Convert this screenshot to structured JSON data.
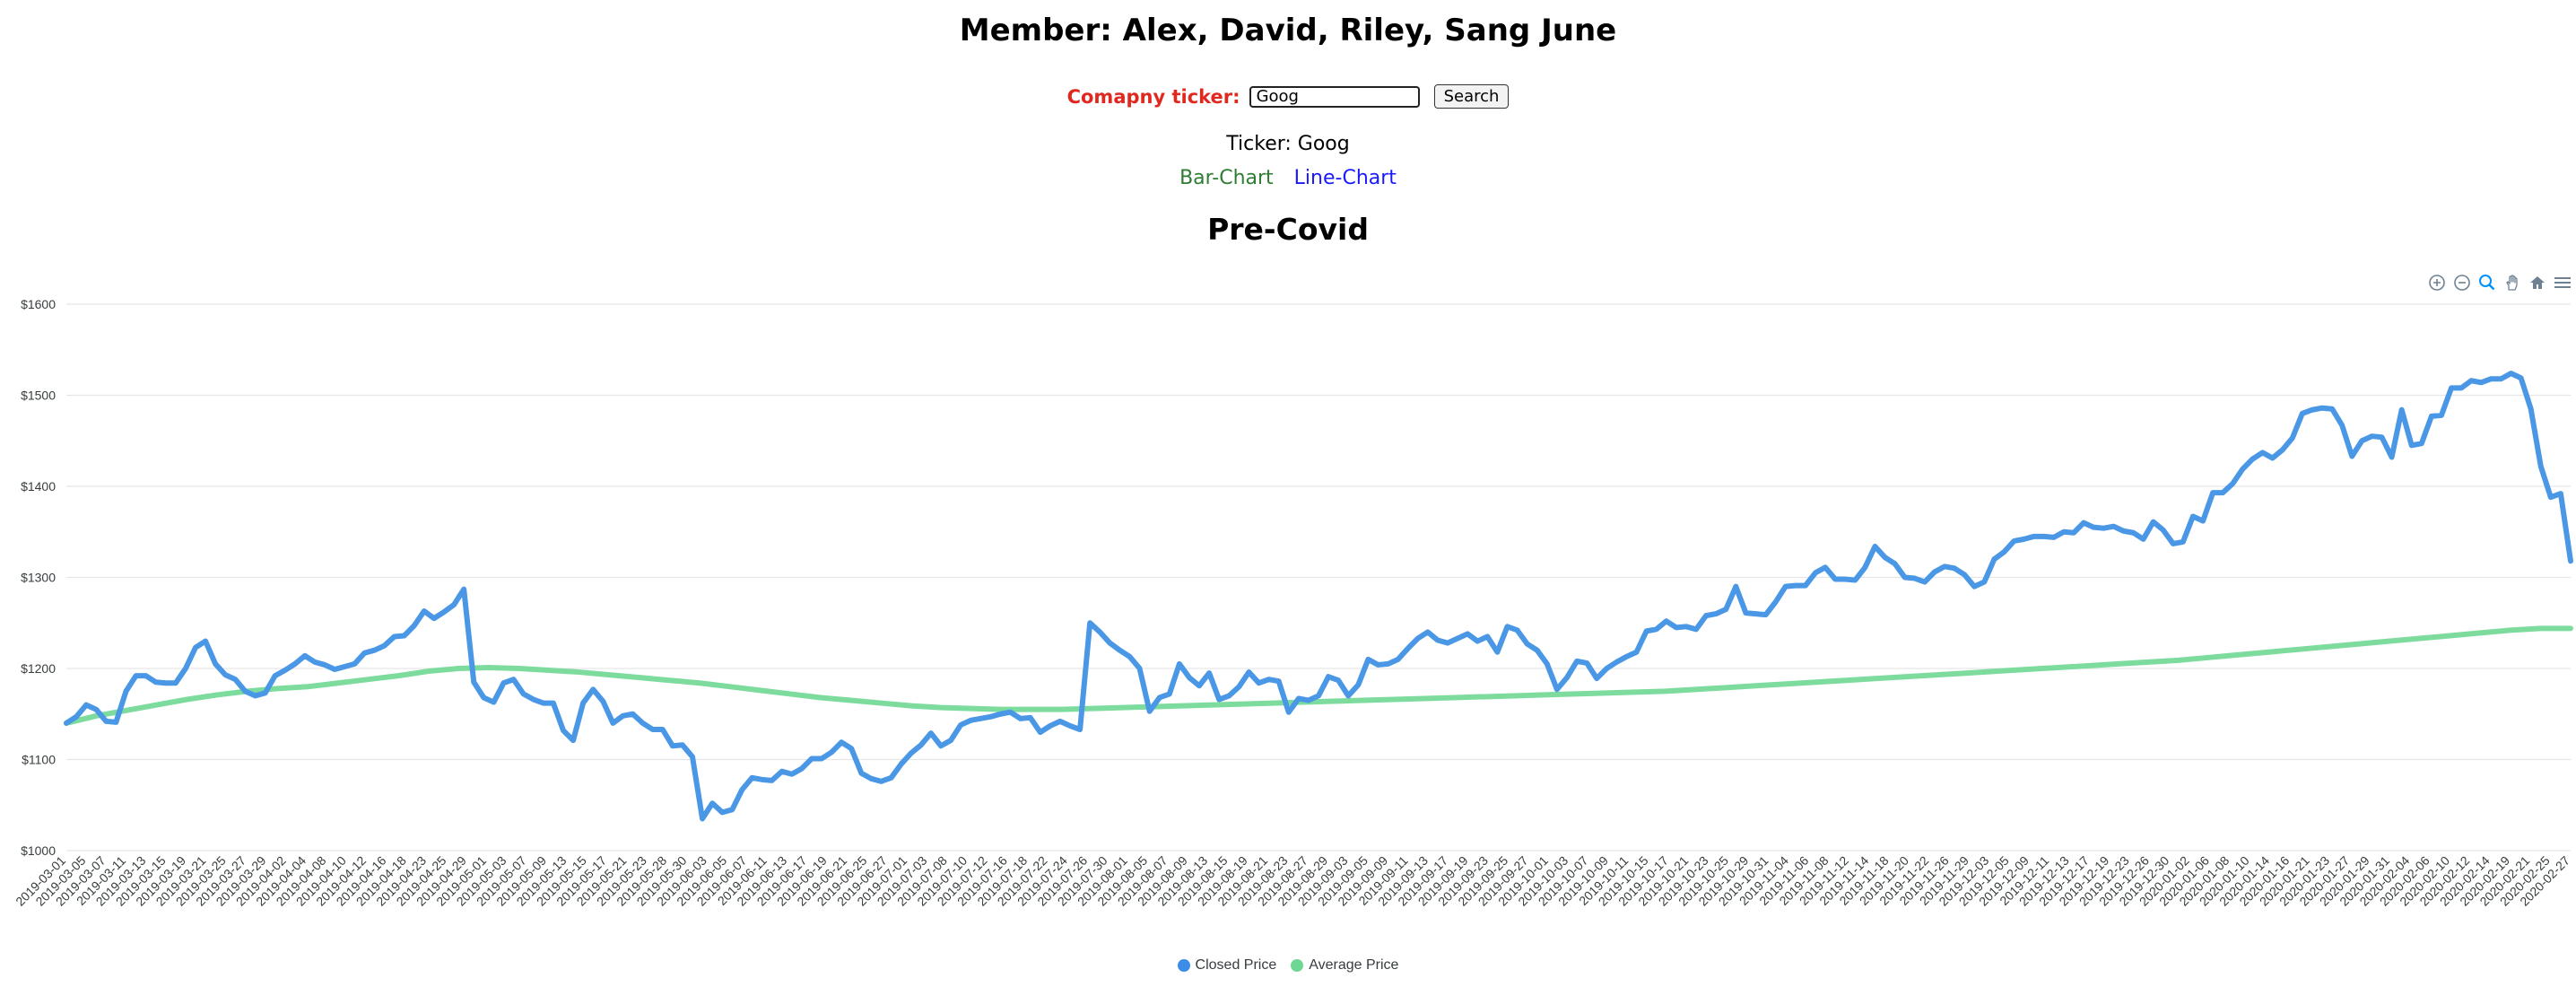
{
  "header": {
    "members": "Member: Alex, David, Riley, Sang June",
    "ticker_label": "Comapny ticker:",
    "ticker_value": "Goog",
    "search_label": "Search",
    "ticker_line": "Ticker: Goog",
    "bar_chart_link": "Bar-Chart",
    "line_chart_link": "Line-Chart"
  },
  "colors": {
    "closed": "#4a97e6",
    "average": "#7ddc9d",
    "ticker_label": "#e0281f",
    "bar_link": "#2e7d32",
    "line_link": "#1a1aff"
  },
  "toolbar_icons": [
    "zoom-in-icon",
    "zoom-out-icon",
    "zoom-select-icon",
    "pan-hand-icon",
    "home-reset-icon",
    "menu-icon"
  ],
  "chart_data": {
    "type": "line",
    "title": "Pre-Covid",
    "ylim": [
      1000,
      1600
    ],
    "yticks": [
      1000,
      1100,
      1200,
      1300,
      1400,
      1500,
      1600
    ],
    "ytick_labels": [
      "$1000",
      "$1100",
      "$1200",
      "$1300",
      "$1400",
      "$1500",
      "$1600"
    ],
    "grid": true,
    "legend": "bottom-center",
    "xtick_labels": [
      "2019-03-01",
      "2019-03-05",
      "2019-03-07",
      "2019-03-11",
      "2019-03-13",
      "2019-03-15",
      "2019-03-19",
      "2019-03-21",
      "2019-03-25",
      "2019-03-27",
      "2019-03-29",
      "2019-04-02",
      "2019-04-04",
      "2019-04-08",
      "2019-04-10",
      "2019-04-12",
      "2019-04-16",
      "2019-04-18",
      "2019-04-23",
      "2019-04-25",
      "2019-04-29",
      "2019-05-01",
      "2019-05-03",
      "2019-05-07",
      "2019-05-09",
      "2019-05-13",
      "2019-05-15",
      "2019-05-17",
      "2019-05-21",
      "2019-05-23",
      "2019-05-28",
      "2019-05-30",
      "2019-06-03",
      "2019-06-05",
      "2019-06-07",
      "2019-06-11",
      "2019-06-13",
      "2019-06-17",
      "2019-06-19",
      "2019-06-21",
      "2019-06-25",
      "2019-06-27",
      "2019-07-01",
      "2019-07-03",
      "2019-07-08",
      "2019-07-10",
      "2019-07-12",
      "2019-07-16",
      "2019-07-18",
      "2019-07-22",
      "2019-07-24",
      "2019-07-26",
      "2019-07-30",
      "2019-08-01",
      "2019-08-05",
      "2019-08-07",
      "2019-08-09",
      "2019-08-13",
      "2019-08-15",
      "2019-08-19",
      "2019-08-21",
      "2019-08-23",
      "2019-08-27",
      "2019-08-29",
      "2019-09-03",
      "2019-09-05",
      "2019-09-09",
      "2019-09-11",
      "2019-09-13",
      "2019-09-17",
      "2019-09-19",
      "2019-09-23",
      "2019-09-25",
      "2019-09-27",
      "2019-10-01",
      "2019-10-03",
      "2019-10-07",
      "2019-10-09",
      "2019-10-11",
      "2019-10-15",
      "2019-10-17",
      "2019-10-21",
      "2019-10-23",
      "2019-10-25",
      "2019-10-29",
      "2019-10-31",
      "2019-11-04",
      "2019-11-06",
      "2019-11-08",
      "2019-11-12",
      "2019-11-14",
      "2019-11-18",
      "2019-11-20",
      "2019-11-22",
      "2019-11-26",
      "2019-11-29",
      "2019-12-03",
      "2019-12-05",
      "2019-12-09",
      "2019-12-11",
      "2019-12-13",
      "2019-12-17",
      "2019-12-19",
      "2019-12-23",
      "2019-12-26",
      "2019-12-30",
      "2020-01-02",
      "2020-01-06",
      "2020-01-08",
      "2020-01-10",
      "2020-01-14",
      "2020-01-16",
      "2020-01-21",
      "2020-01-23",
      "2020-01-27",
      "2020-01-29",
      "2020-01-31",
      "2020-02-04",
      "2020-02-06",
      "2020-02-10",
      "2020-02-12",
      "2020-02-14",
      "2020-02-19",
      "2020-02-21",
      "2020-02-25",
      "2020-02-27"
    ],
    "series": [
      {
        "name": "Closed Price",
        "values": [
          1140,
          1147,
          1160,
          1155,
          1142,
          1141,
          1175,
          1192,
          1192,
          1185,
          1184,
          1184,
          1200,
          1223,
          1230,
          1205,
          1193,
          1188,
          1175,
          1170,
          1173,
          1192,
          1198,
          1205,
          1214,
          1207,
          1204,
          1199,
          1202,
          1205,
          1217,
          1220,
          1225,
          1235,
          1236,
          1247,
          1263,
          1255,
          1262,
          1270,
          1287,
          1185,
          1168,
          1163,
          1184,
          1188,
          1172,
          1166,
          1162,
          1162,
          1132,
          1121,
          1162,
          1177,
          1164,
          1140,
          1148,
          1150,
          1140,
          1133,
          1133,
          1115,
          1116,
          1103,
          1035,
          1052,
          1042,
          1045,
          1067,
          1080,
          1078,
          1077,
          1087,
          1084,
          1090,
          1101,
          1101,
          1108,
          1119,
          1112,
          1085,
          1079,
          1076,
          1080,
          1095,
          1107,
          1116,
          1129,
          1115,
          1121,
          1138,
          1143,
          1145,
          1147,
          1150,
          1152,
          1145,
          1146,
          1130,
          1137,
          1142,
          1137,
          1133,
          1250,
          1240,
          1228,
          1220,
          1213,
          1200,
          1153,
          1168,
          1172,
          1205,
          1190,
          1181,
          1195,
          1166,
          1170,
          1180,
          1196,
          1184,
          1188,
          1186,
          1152,
          1167,
          1165,
          1170,
          1191,
          1187,
          1170,
          1182,
          1210,
          1204,
          1205,
          1210,
          1222,
          1233,
          1240,
          1231,
          1228,
          1233,
          1238,
          1230,
          1235,
          1218,
          1246,
          1242,
          1227,
          1220,
          1205,
          1177,
          1190,
          1208,
          1206,
          1189,
          1200,
          1207,
          1213,
          1218,
          1241,
          1243,
          1252,
          1245,
          1246,
          1243,
          1258,
          1260,
          1265,
          1290,
          1261,
          1260,
          1259,
          1273,
          1290,
          1291,
          1291,
          1305,
          1311,
          1298,
          1298,
          1297,
          1311,
          1334,
          1322,
          1315,
          1300,
          1299,
          1295,
          1306,
          1312,
          1310,
          1303,
          1290,
          1295,
          1320,
          1328,
          1340,
          1342,
          1345,
          1345,
          1344,
          1350,
          1349,
          1360,
          1355,
          1354,
          1356,
          1351,
          1349,
          1342,
          1361,
          1352,
          1337,
          1339,
          1367,
          1362,
          1393,
          1393,
          1403,
          1419,
          1430,
          1437,
          1431,
          1440,
          1453,
          1480,
          1484,
          1486,
          1485,
          1467,
          1433,
          1450,
          1455,
          1454,
          1432,
          1484,
          1445,
          1447,
          1477,
          1478,
          1508,
          1508,
          1516,
          1514,
          1518,
          1518,
          1524,
          1519,
          1485,
          1422,
          1388,
          1392,
          1318
        ]
      },
      {
        "name": "Average Price",
        "values": [
          1140,
          1148,
          1154,
          1160,
          1166,
          1171,
          1175,
          1178,
          1180,
          1184,
          1188,
          1192,
          1197,
          1200,
          1201,
          1200,
          1198,
          1196,
          1193,
          1190,
          1187,
          1184,
          1180,
          1176,
          1172,
          1168,
          1165,
          1162,
          1159,
          1157,
          1156,
          1155,
          1155,
          1155,
          1156,
          1157,
          1158,
          1159,
          1160,
          1161,
          1162,
          1163,
          1164,
          1165,
          1166,
          1167,
          1168,
          1169,
          1170,
          1171,
          1172,
          1173,
          1174,
          1175,
          1177,
          1179,
          1181,
          1183,
          1185,
          1187,
          1189,
          1191,
          1193,
          1195,
          1197,
          1199,
          1201,
          1203,
          1205,
          1207,
          1209,
          1212,
          1215,
          1218,
          1221,
          1224,
          1227,
          1230,
          1233,
          1236,
          1239,
          1242,
          1244,
          1244
        ]
      }
    ]
  }
}
